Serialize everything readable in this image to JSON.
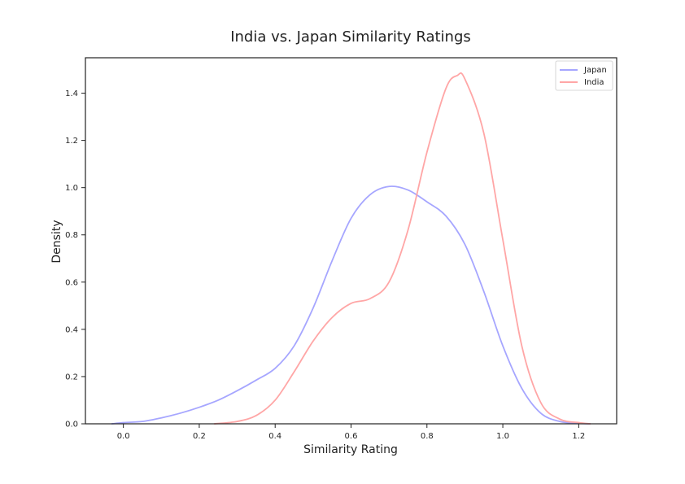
{
  "chart_data": {
    "type": "line",
    "title": "India vs. Japan Similarity Ratings",
    "xlabel": "Similarity Rating",
    "ylabel": "Density",
    "xlim": [
      -0.1,
      1.3
    ],
    "ylim": [
      0,
      1.55
    ],
    "xticks": [
      0.0,
      0.2,
      0.4,
      0.6,
      0.8,
      1.0,
      1.2
    ],
    "xtick_labels": [
      "0.0",
      "0.2",
      "0.4",
      "0.6",
      "0.8",
      "1.0",
      "1.2"
    ],
    "yticks": [
      0.0,
      0.2,
      0.4,
      0.6,
      0.8,
      1.0,
      1.2,
      1.4
    ],
    "ytick_labels": [
      "0.0",
      "0.2",
      "0.4",
      "0.6",
      "0.8",
      "1.0",
      "1.2",
      "1.4"
    ],
    "grid": false,
    "legend_position": "top-right",
    "series": [
      {
        "name": "Japan",
        "color": "#a6a6ff",
        "x": [
          -0.03,
          0.0,
          0.05,
          0.1,
          0.15,
          0.2,
          0.25,
          0.3,
          0.35,
          0.4,
          0.45,
          0.5,
          0.55,
          0.6,
          0.65,
          0.7,
          0.75,
          0.8,
          0.85,
          0.9,
          0.95,
          1.0,
          1.05,
          1.1,
          1.15,
          1.2,
          1.23
        ],
        "y": [
          0.0,
          0.005,
          0.01,
          0.025,
          0.045,
          0.07,
          0.1,
          0.14,
          0.185,
          0.235,
          0.33,
          0.49,
          0.69,
          0.87,
          0.97,
          1.005,
          0.99,
          0.94,
          0.88,
          0.76,
          0.56,
          0.33,
          0.15,
          0.045,
          0.01,
          0.002,
          0.0
        ]
      },
      {
        "name": "India",
        "color": "#ffa6a6",
        "x": [
          0.24,
          0.3,
          0.35,
          0.4,
          0.45,
          0.5,
          0.55,
          0.6,
          0.65,
          0.7,
          0.75,
          0.8,
          0.85,
          0.88,
          0.9,
          0.95,
          1.0,
          1.05,
          1.1,
          1.15,
          1.2,
          1.23
        ],
        "y": [
          0.0,
          0.01,
          0.035,
          0.1,
          0.22,
          0.35,
          0.45,
          0.51,
          0.53,
          0.6,
          0.82,
          1.15,
          1.42,
          1.475,
          1.46,
          1.23,
          0.78,
          0.33,
          0.09,
          0.02,
          0.005,
          0.0
        ]
      }
    ]
  }
}
